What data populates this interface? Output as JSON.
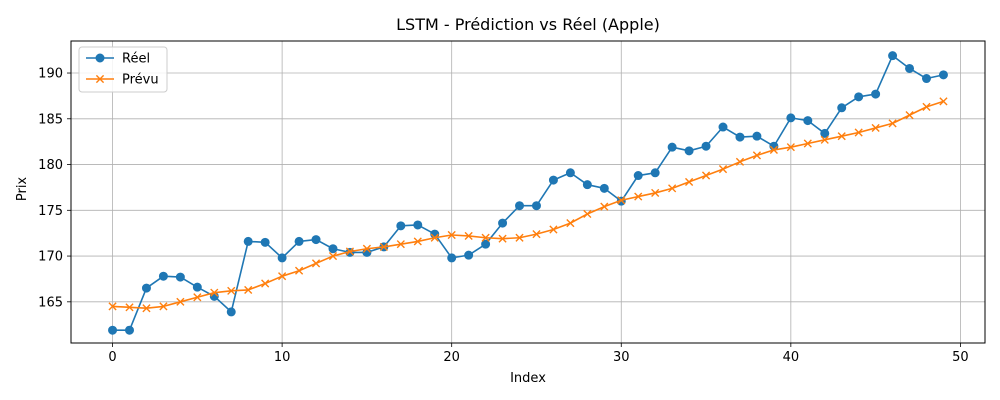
{
  "chart_data": {
    "type": "line",
    "title": "LSTM - Prédiction vs Réel (Apple)",
    "xlabel": "Index",
    "ylabel": "Prix",
    "xlim": [
      -2.45,
      51.45
    ],
    "ylim": [
      160.5,
      193.5
    ],
    "xticks": [
      0,
      10,
      20,
      30,
      40,
      50
    ],
    "yticks": [
      165,
      170,
      175,
      180,
      185,
      190
    ],
    "grid": true,
    "legend_position": "top-left",
    "x": [
      0,
      1,
      2,
      3,
      4,
      5,
      6,
      7,
      8,
      9,
      10,
      11,
      12,
      13,
      14,
      15,
      16,
      17,
      18,
      19,
      20,
      21,
      22,
      23,
      24,
      25,
      26,
      27,
      28,
      29,
      30,
      31,
      32,
      33,
      34,
      35,
      36,
      37,
      38,
      39,
      40,
      41,
      42,
      43,
      44,
      45,
      46,
      47,
      48,
      49
    ],
    "series": [
      {
        "name": "Réel",
        "color": "#1f77b4",
        "marker": "circle",
        "values": [
          161.9,
          161.9,
          166.5,
          167.8,
          167.7,
          166.6,
          165.6,
          163.9,
          171.6,
          171.5,
          169.8,
          171.6,
          171.8,
          170.8,
          170.4,
          170.4,
          171.0,
          173.3,
          173.4,
          172.4,
          169.8,
          170.1,
          171.3,
          173.6,
          175.5,
          175.5,
          178.3,
          179.1,
          177.8,
          177.4,
          176.0,
          178.8,
          179.1,
          181.9,
          181.5,
          182.0,
          184.1,
          183.0,
          183.1,
          182.0,
          185.1,
          184.8,
          183.4,
          186.2,
          187.4,
          187.7,
          191.9,
          190.5,
          189.4,
          189.8
        ]
      },
      {
        "name": "Prévu",
        "color": "#ff7f0e",
        "marker": "x",
        "values": [
          164.5,
          164.4,
          164.3,
          164.5,
          165.0,
          165.5,
          166.0,
          166.2,
          166.3,
          167.0,
          167.8,
          168.4,
          169.2,
          170.0,
          170.5,
          170.8,
          171.0,
          171.3,
          171.6,
          172.0,
          172.3,
          172.2,
          172.0,
          171.9,
          172.0,
          172.4,
          172.9,
          173.6,
          174.6,
          175.4,
          176.1,
          176.5,
          176.9,
          177.4,
          178.1,
          178.8,
          179.5,
          180.3,
          181.0,
          181.6,
          181.9,
          182.3,
          182.7,
          183.1,
          183.5,
          184.0,
          184.5,
          185.4,
          186.3,
          186.9
        ]
      }
    ]
  }
}
